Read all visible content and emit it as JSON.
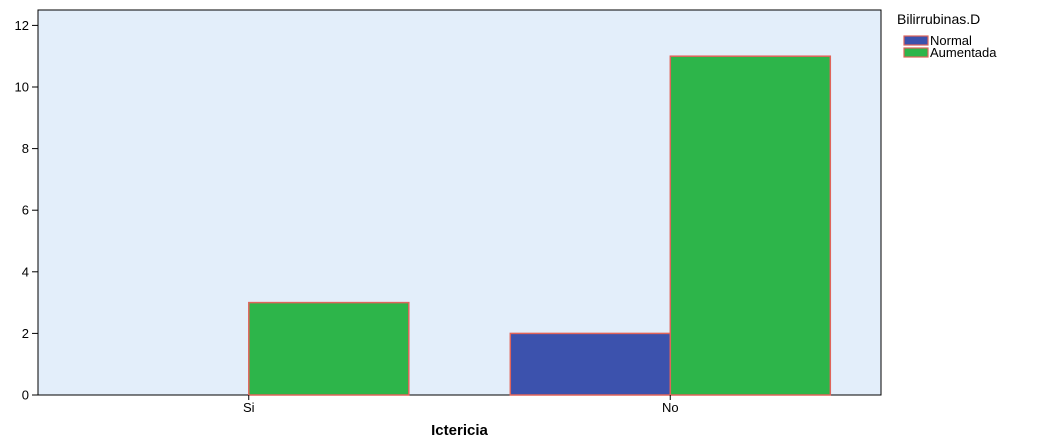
{
  "chart_data": {
    "type": "bar",
    "categories": [
      "Si",
      "No"
    ],
    "series": [
      {
        "name": "Normal",
        "values": [
          0,
          2
        ]
      },
      {
        "name": "Aumentada",
        "values": [
          3,
          11
        ]
      }
    ],
    "xlabel": "Ictericia",
    "ylabel": "",
    "ylim": [
      0,
      12.5
    ],
    "yticks": [
      0,
      2,
      4,
      6,
      8,
      10,
      12
    ],
    "legend_title": "Bilirrubinas.D",
    "legend_position": "top-right",
    "grid": false,
    "colors": {
      "plot_background": "#e3eefa",
      "Normal": "#3c52ad",
      "Aumentada": "#2db54a",
      "bar_edge": "#e0645a",
      "axis": "#000000"
    }
  }
}
